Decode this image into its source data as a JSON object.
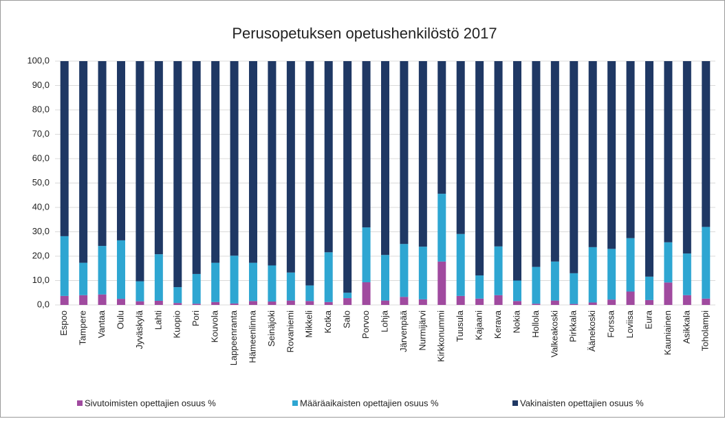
{
  "chart_data": {
    "type": "stacked_bar",
    "title": "Perusopetuksen opetushenkilöstö 2017",
    "categories": [
      "Espoo",
      "Tampere",
      "Vantaa",
      "Oulu",
      "Jyväskylä",
      "Lahti",
      "Kuopio",
      "Pori",
      "Kouvola",
      "Lappeenranta",
      "Hämeenlinna",
      "Seinäjoki",
      "Rovaniemi",
      "Mikkeli",
      "Kotka",
      "Salo",
      "Porvoo",
      "Lohja",
      "Järvenpää",
      "Nurmijärvi",
      "Kirkkonummi",
      "Tuusula",
      "Kajaani",
      "Kerava",
      "Nokia",
      "Hollola",
      "Valkeakoski",
      "Pirkkala",
      "Äänekoski",
      "Forssa",
      "Loviisa",
      "Eura",
      "Kauniainen",
      "Asikkala",
      "Toholampi"
    ],
    "series": [
      {
        "name": "Sivutoimisten opettajien osuus %",
        "color": "#a04a9f",
        "values": [
          3.7,
          4.0,
          4.3,
          2.5,
          1.5,
          1.7,
          0.8,
          0.5,
          1.2,
          0.6,
          1.6,
          1.4,
          1.8,
          1.6,
          1.2,
          2.8,
          9.3,
          1.8,
          3.3,
          2.3,
          17.8,
          3.7,
          2.6,
          4.0,
          1.6,
          0.5,
          1.8,
          0.4,
          1.0,
          2.2,
          5.5,
          2.0,
          9.2,
          4.0,
          2.6
        ]
      },
      {
        "name": "Määräaikaisten opettajien osuus %",
        "color": "#2ea6d2",
        "values": [
          24.5,
          13.3,
          19.9,
          24.0,
          8.2,
          19.1,
          6.5,
          12.2,
          16.1,
          19.6,
          15.7,
          14.8,
          11.5,
          6.4,
          20.4,
          2.2,
          22.5,
          18.7,
          21.7,
          21.6,
          27.8,
          25.4,
          9.5,
          20.0,
          8.4,
          15.1,
          16.0,
          12.6,
          22.7,
          20.8,
          21.9,
          9.6,
          16.5,
          17.1,
          29.4
        ]
      },
      {
        "name": "Vakinaisten opettajien osuus %",
        "color": "#1f3864",
        "values": [
          71.8,
          82.7,
          75.8,
          73.5,
          90.3,
          79.2,
          92.7,
          87.3,
          82.7,
          79.8,
          82.7,
          83.8,
          86.7,
          92.0,
          78.4,
          95.0,
          68.2,
          79.5,
          75.0,
          76.1,
          54.4,
          70.9,
          87.9,
          76.0,
          90.0,
          84.4,
          82.2,
          87.0,
          76.3,
          77.0,
          72.6,
          88.4,
          74.3,
          78.9,
          68.0
        ]
      }
    ],
    "ylim": [
      0,
      100
    ],
    "yticks": [
      {
        "value": 0,
        "label": "0,0"
      },
      {
        "value": 10,
        "label": "10,0"
      },
      {
        "value": 20,
        "label": "20,0"
      },
      {
        "value": 30,
        "label": "30,0"
      },
      {
        "value": 40,
        "label": "40,0"
      },
      {
        "value": 50,
        "label": "50,0"
      },
      {
        "value": 60,
        "label": "60,0"
      },
      {
        "value": 70,
        "label": "70,0"
      },
      {
        "value": 80,
        "label": "80,0"
      },
      {
        "value": 90,
        "label": "90,0"
      },
      {
        "value": 100,
        "label": "100,0"
      }
    ],
    "grid": true
  }
}
